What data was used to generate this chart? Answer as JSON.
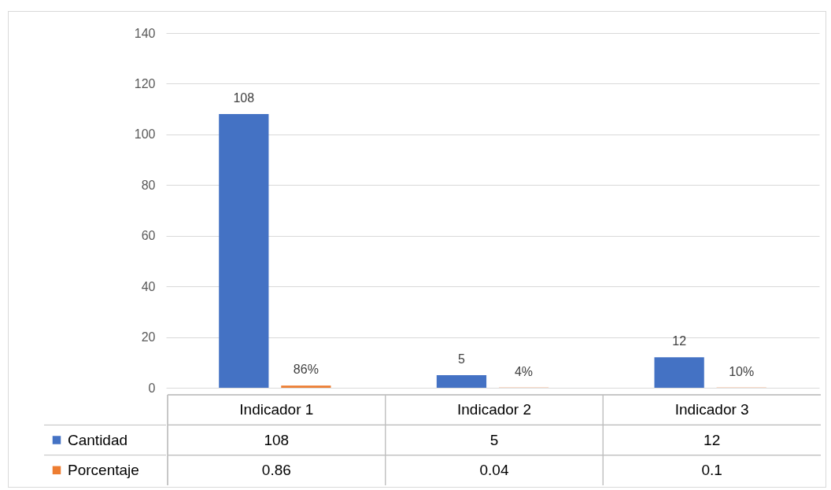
{
  "chart_data": {
    "type": "bar",
    "categories": [
      "Indicador 1",
      "Indicador 2",
      "Indicador 3"
    ],
    "series": [
      {
        "name": "Cantidad",
        "color": "#4472c4",
        "values": [
          108,
          5,
          12
        ],
        "value_labels": [
          "108",
          "5",
          "12"
        ]
      },
      {
        "name": "Porcentaje",
        "color": "#ed7d31",
        "values": [
          0.86,
          0.04,
          0.1
        ],
        "value_labels": [
          "86%",
          "4%",
          "10%"
        ]
      }
    ],
    "ylim": [
      0,
      140
    ],
    "yticks": [
      0,
      20,
      40,
      60,
      80,
      100,
      120,
      140
    ],
    "grid": "y",
    "legend": "bottom",
    "annotations": [
      "108",
      "5",
      "12",
      "0.86",
      "0.04",
      "0.1"
    ]
  }
}
